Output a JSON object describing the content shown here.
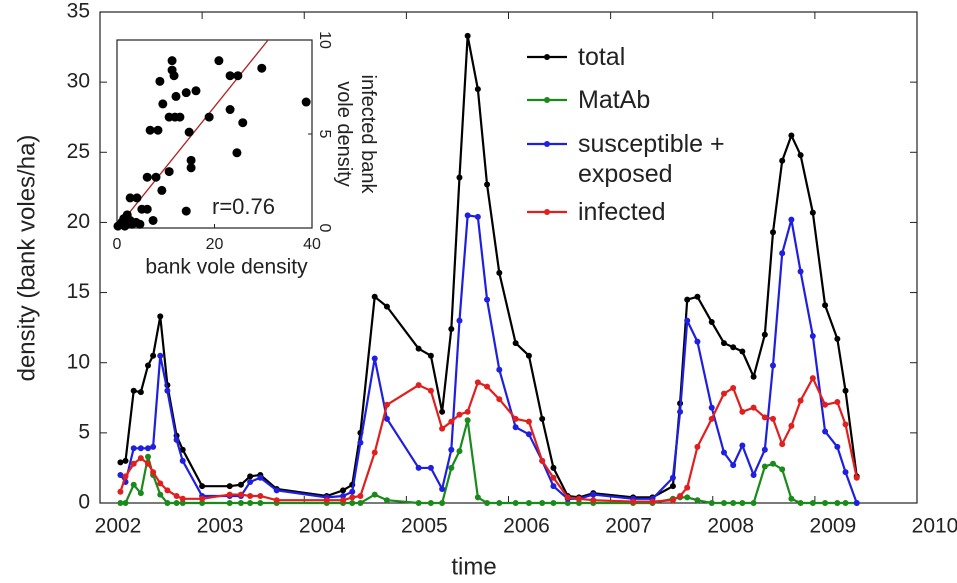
{
  "chart_data": [
    {
      "type": "line",
      "xlabel": "time",
      "ylabel": "density (bank voles/ha)",
      "xlim": [
        2002,
        2010
      ],
      "xticks": [
        2002,
        2003,
        2004,
        2005,
        2006,
        2007,
        2008,
        2009,
        2010
      ],
      "ylim": [
        0,
        35
      ],
      "yticks": [
        0,
        5,
        10,
        15,
        20,
        25,
        30,
        35
      ],
      "legend": "upper right",
      "x": [
        2002.2,
        2002.25,
        2002.33,
        2002.4,
        2002.47,
        2002.52,
        2002.59,
        2002.66,
        2002.75,
        2002.81,
        2003.0,
        2003.27,
        2003.38,
        2003.47,
        2003.57,
        2003.73,
        2004.22,
        2004.38,
        2004.47,
        2004.55,
        2004.69,
        2004.81,
        2005.12,
        2005.24,
        2005.35,
        2005.44,
        2005.52,
        2005.6,
        2005.7,
        2005.79,
        2005.91,
        2006.07,
        2006.2,
        2006.33,
        2006.44,
        2006.58,
        2006.69,
        2006.83,
        2007.22,
        2007.41,
        2007.61,
        2007.68,
        2007.75,
        2007.85,
        2007.99,
        2008.11,
        2008.2,
        2008.29,
        2008.4,
        2008.51,
        2008.59,
        2008.68,
        2008.77,
        2008.86,
        2008.98,
        2009.1,
        2009.22,
        2009.3,
        2009.41
      ],
      "series": [
        {
          "name": "total",
          "color": "#000000",
          "values": [
            2.9,
            3.0,
            8.0,
            7.9,
            9.8,
            10.5,
            13.3,
            8.4,
            4.8,
            3.8,
            1.2,
            1.2,
            1.3,
            1.9,
            2.0,
            1.0,
            0.5,
            0.9,
            1.3,
            5.0,
            14.7,
            14.0,
            11.0,
            10.5,
            6.5,
            12.4,
            23.2,
            33.3,
            29.5,
            22.7,
            16.4,
            11.4,
            10.5,
            6.0,
            2.5,
            0.5,
            0.4,
            0.7,
            0.4,
            0.4,
            1.2,
            7.1,
            14.5,
            14.7,
            12.9,
            11.4,
            11.1,
            10.8,
            9.0,
            12.0,
            19.3,
            24.4,
            26.2,
            24.8,
            20.7,
            14.1,
            11.7,
            8.0,
            1.9
          ]
        },
        {
          "name": "MatAb",
          "color": "#1a8a1a",
          "values": [
            0,
            0,
            1.3,
            0.7,
            3.3,
            2.0,
            0.6,
            0,
            0,
            0,
            0,
            0,
            0,
            0,
            0,
            0,
            0,
            0,
            0,
            0,
            0.6,
            0.2,
            0,
            0,
            0,
            2.5,
            3.7,
            5.9,
            0.4,
            0,
            0,
            0,
            0,
            0,
            0,
            0,
            0,
            0,
            0,
            0,
            0.3,
            0.4,
            0.4,
            0.2,
            0,
            0,
            0,
            0,
            0,
            2.6,
            2.8,
            2.4,
            0.3,
            0,
            0,
            0,
            0,
            0,
            0
          ]
        },
        {
          "name": "susceptible + exposed",
          "color": "#1f1fe0",
          "values": [
            2.0,
            1.5,
            3.9,
            3.9,
            3.9,
            4.0,
            10.5,
            8.0,
            4.5,
            3.0,
            0.5,
            0.5,
            0.5,
            1.5,
            1.8,
            0.9,
            0.4,
            0.5,
            0.8,
            4.3,
            10.3,
            6.0,
            2.5,
            2.5,
            1.0,
            3.8,
            13.0,
            20.5,
            20.4,
            14.5,
            9.5,
            5.4,
            4.9,
            3.0,
            1.2,
            0.3,
            0.3,
            0.6,
            0.3,
            0.3,
            1.8,
            6.5,
            13.0,
            11.5,
            6.8,
            3.6,
            2.7,
            4.1,
            2.0,
            3.8,
            9.8,
            17.8,
            20.2,
            16.5,
            11.9,
            5.1,
            4.0,
            2.2,
            0.0
          ]
        },
        {
          "name": "infected",
          "color": "#e01f1f",
          "values": [
            0.8,
            1.9,
            2.8,
            3.2,
            2.8,
            2.2,
            1.4,
            0.9,
            0.5,
            0.3,
            0.3,
            0.6,
            0.6,
            0.5,
            0.5,
            0.2,
            0.2,
            0.2,
            0.4,
            0.5,
            3.6,
            7.0,
            8.4,
            8.0,
            5.3,
            5.8,
            6.3,
            6.5,
            8.6,
            8.3,
            7.4,
            6.0,
            5.8,
            3.0,
            1.8,
            0.4,
            0.3,
            0.2,
            0.1,
            0.1,
            0.2,
            0.5,
            1.1,
            4.0,
            6.0,
            7.8,
            8.2,
            6.5,
            6.8,
            6.1,
            6.0,
            4.2,
            5.5,
            7.3,
            8.9,
            7.0,
            7.2,
            5.6,
            1.8
          ]
        }
      ]
    },
    {
      "type": "scatter",
      "xlabel": "bank vole density",
      "y2label": "infected bank vole density",
      "annotation": "r=0.76",
      "xlim": [
        0,
        40
      ],
      "xticks": [
        0,
        20,
        40
      ],
      "y2lim": [
        0,
        10
      ],
      "y2ticks": [
        0,
        5,
        10
      ],
      "color": "#000000",
      "fit_line": {
        "x": [
          0,
          31
        ],
        "y": [
          0,
          10
        ],
        "color": "#b22222"
      },
      "x": [
        11.3,
        11.3,
        11.7,
        20.9,
        23.2,
        24.8,
        29.7,
        38.8,
        8.8,
        9.4,
        12.1,
        14.2,
        16.2,
        10.7,
        11.9,
        12.9,
        18.9,
        6.8,
        8.4,
        23.2,
        25.8,
        24.6,
        14.8,
        15.2,
        15.2,
        6.2,
        8.0,
        10.7,
        9.2,
        14.2,
        2.7,
        4.1,
        5.1,
        6.2,
        7.4,
        1.0,
        1.4,
        2.1,
        2.7,
        0.8,
        1.6,
        0.2,
        3.1,
        3.9,
        4.7
      ],
      "values": [
        8.9,
        8.4,
        8.1,
        8.9,
        8.1,
        8.1,
        8.5,
        6.7,
        7.8,
        6.6,
        7.0,
        7.2,
        7.3,
        5.9,
        5.9,
        5.9,
        5.9,
        5.2,
        5.2,
        6.3,
        5.6,
        4.0,
        5.1,
        3.6,
        3.2,
        2.7,
        2.7,
        3.0,
        2.0,
        0.9,
        1.6,
        1.6,
        1.0,
        1.0,
        0.4,
        0.3,
        0.5,
        0.7,
        0.4,
        0.2,
        0.1,
        0.1,
        0.2,
        0.3,
        0.2
      ]
    }
  ]
}
